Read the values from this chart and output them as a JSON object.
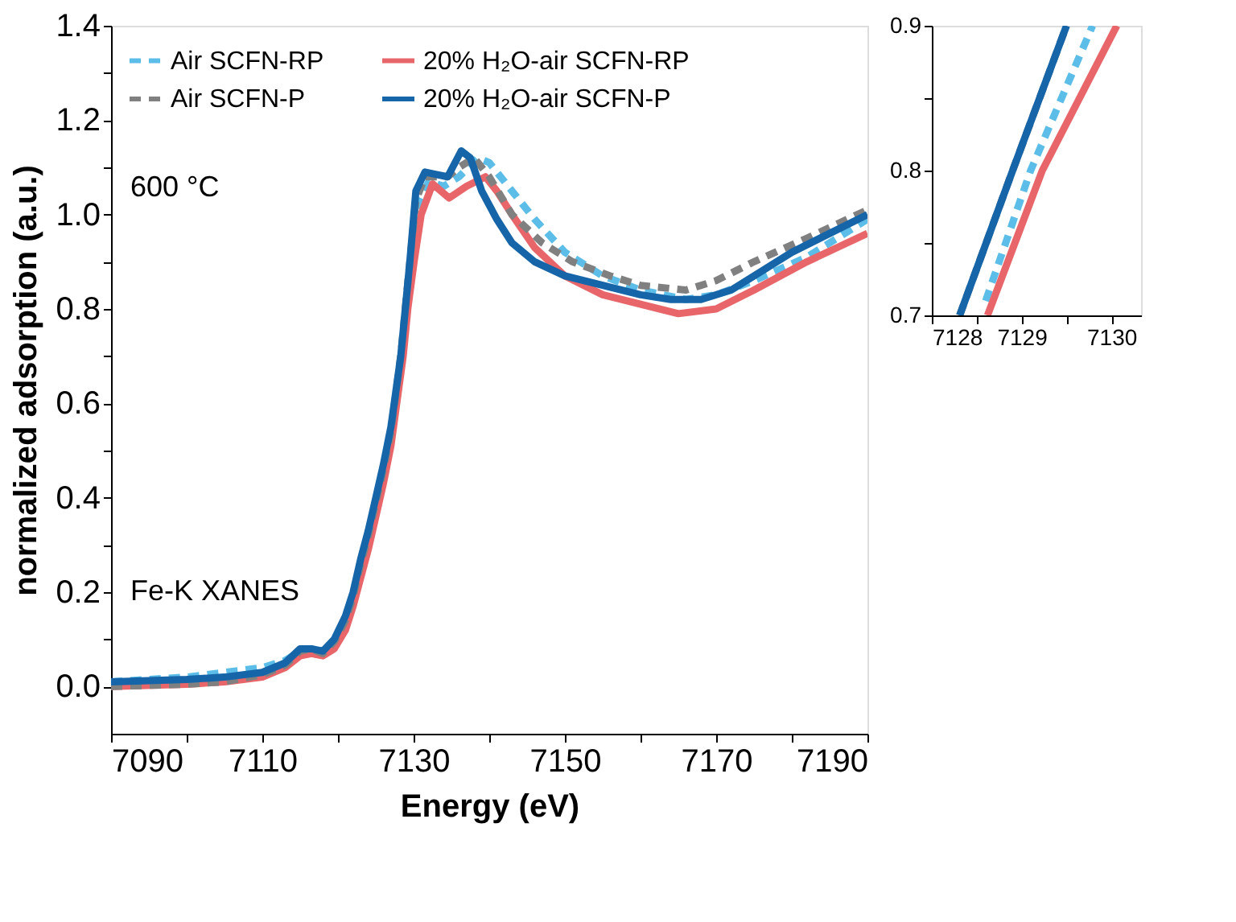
{
  "chart_data": [
    {
      "type": "line",
      "xlabel": "Energy (eV)",
      "ylabel": "normalized adsorption (a.u.)",
      "xlim": [
        7090,
        7190
      ],
      "ylim": [
        -0.1,
        1.4
      ],
      "xticks": [
        7090,
        {
          "value": 7100,
          "label": null
        },
        7110,
        {
          "value": 7120,
          "label": null
        },
        7130,
        {
          "value": 7140,
          "label": null
        },
        7150,
        {
          "value": 7160,
          "label": null
        },
        7170,
        {
          "value": 7180,
          "label": null
        },
        7190
      ],
      "yticks": [
        {
          "value": 0,
          "label": "0.0"
        },
        {
          "value": 0.1,
          "label": null
        },
        0.2,
        {
          "value": 0.3,
          "label": null
        },
        0.4,
        {
          "value": 0.5,
          "label": null
        },
        0.6,
        {
          "value": 0.7,
          "label": null
        },
        0.8,
        {
          "value": 0.9,
          "label": null
        },
        {
          "value": 1,
          "label": "1.0"
        },
        {
          "value": 1.1,
          "label": null
        },
        1.2,
        {
          "value": 1.3,
          "label": null
        },
        1.4
      ],
      "grid": false,
      "legend": "top left",
      "annotations": [
        "600 °C",
        "Fe-K XANES"
      ],
      "series": [
        {
          "name": "Air  SCFN-RP",
          "color": "#5bbde8",
          "line_style": "dashed",
          "x": [
            7090,
            7100,
            7105,
            7110,
            7113,
            7115,
            7116.5,
            7118,
            7119.5,
            7121,
            7122,
            7123,
            7124,
            7125,
            7126,
            7127,
            7128.55,
            7129.1,
            7129.79,
            7130.6,
            7132,
            7134,
            7136,
            7138.5,
            7140,
            7143,
            7146,
            7150,
            7155,
            7160,
            7166,
            7170,
            7175,
            7182,
            7190
          ],
          "values": [
            0.01,
            0.02,
            0.03,
            0.04,
            0.055,
            0.075,
            0.08,
            0.075,
            0.09,
            0.13,
            0.18,
            0.24,
            0.3,
            0.37,
            0.44,
            0.52,
            0.7,
            0.8,
            0.9,
            1.02,
            1.07,
            1.06,
            1.08,
            1.12,
            1.11,
            1.05,
            0.99,
            0.92,
            0.87,
            0.84,
            0.82,
            0.83,
            0.86,
            0.91,
            0.99
          ]
        },
        {
          "name": "20% H₂O-air SCFN-RP",
          "color": "#e8666a",
          "line_style": "solid",
          "x": [
            7090,
            7100,
            7105,
            7110,
            7113,
            7115,
            7116.5,
            7118,
            7119.5,
            7121,
            7122,
            7123,
            7124,
            7125,
            7126,
            7127,
            7128.62,
            7129.23,
            7130.06,
            7131,
            7132.5,
            7134.7,
            7137,
            7139.5,
            7141,
            7143,
            7146,
            7150,
            7155,
            7160,
            7165,
            7170,
            7175,
            7182,
            7190
          ],
          "values": [
            0,
            0.005,
            0.01,
            0.02,
            0.04,
            0.065,
            0.07,
            0.065,
            0.08,
            0.12,
            0.17,
            0.23,
            0.29,
            0.36,
            0.43,
            0.51,
            0.7,
            0.8,
            0.9,
            1.0,
            1.065,
            1.035,
            1.06,
            1.08,
            1.05,
            1.0,
            0.93,
            0.87,
            0.83,
            0.81,
            0.79,
            0.8,
            0.84,
            0.9,
            0.96
          ]
        },
        {
          "name": "Air  SCFN-P",
          "color": "#808080",
          "line_style": "dashed",
          "x": [
            7090,
            7100,
            7105,
            7110,
            7113,
            7115,
            7116.5,
            7118,
            7119.5,
            7121,
            7122,
            7123,
            7124,
            7125,
            7126,
            7127,
            7128.3,
            7128.9,
            7129.5,
            7130.3,
            7131.5,
            7133,
            7134.5,
            7136,
            7138,
            7140,
            7143,
            7147,
            7151,
            7156,
            7160,
            7166,
            7170,
            7175,
            7182,
            7190
          ],
          "values": [
            0,
            0.005,
            0.01,
            0.025,
            0.045,
            0.075,
            0.08,
            0.07,
            0.095,
            0.14,
            0.19,
            0.26,
            0.32,
            0.39,
            0.46,
            0.54,
            0.7,
            0.8,
            0.9,
            1.03,
            1.08,
            1.08,
            1.08,
            1.1,
            1.12,
            1.08,
            1.0,
            0.94,
            0.9,
            0.87,
            0.85,
            0.84,
            0.86,
            0.9,
            0.95,
            1.01
          ]
        },
        {
          "name": "20% H₂O-air SCFN-P",
          "color": "#1665a8",
          "line_style": "solid",
          "x": [
            7090,
            7100,
            7105,
            7110,
            7113,
            7115,
            7116.5,
            7118,
            7119.5,
            7121,
            7122,
            7123,
            7124,
            7125,
            7126,
            7127,
            7128.3,
            7128.9,
            7129.5,
            7130.3,
            7131.5,
            7133,
            7134.5,
            7136.3,
            7137.5,
            7139,
            7141,
            7143,
            7146,
            7150,
            7155,
            7160,
            7164,
            7168,
            7172,
            7176,
            7180,
            7185,
            7190
          ],
          "values": [
            0.01,
            0.015,
            0.02,
            0.03,
            0.05,
            0.08,
            0.08,
            0.075,
            0.1,
            0.15,
            0.2,
            0.27,
            0.33,
            0.4,
            0.47,
            0.55,
            0.7,
            0.8,
            0.9,
            1.05,
            1.09,
            1.085,
            1.08,
            1.135,
            1.12,
            1.05,
            0.99,
            0.94,
            0.9,
            0.87,
            0.85,
            0.83,
            0.82,
            0.82,
            0.84,
            0.88,
            0.92,
            0.96,
            1.0
          ]
        }
      ]
    },
    {
      "type": "line",
      "xlim": [
        7128,
        7130.33
      ],
      "ylim": [
        0.7,
        0.9
      ],
      "xticks": [
        7128,
        {
          "value": 7128.5,
          "label": null
        },
        7129,
        {
          "value": 7129.5,
          "label": null
        },
        7130
      ],
      "yticks": [
        0.7,
        {
          "value": 0.75,
          "label": null
        },
        0.8,
        {
          "value": 0.85,
          "label": null
        },
        0.9
      ],
      "grid": false,
      "legend": false,
      "series": [
        {
          "color": "#5bbde8",
          "line_style": "dashed",
          "x": [
            7128.6,
            7129.1,
            7129.79
          ],
          "values": [
            0.71,
            0.8,
            0.9
          ]
        },
        {
          "color": "#e8666a",
          "line_style": "solid",
          "x": [
            7128.62,
            7129.23,
            7130.06
          ],
          "values": [
            0.7,
            0.8,
            0.9
          ]
        },
        {
          "color": "#808080",
          "line_style": "dashed",
          "x": [
            7128.31,
            7128.9,
            7129.5
          ],
          "values": [
            0.7,
            0.8,
            0.9
          ]
        },
        {
          "color": "#1665a8",
          "line_style": "solid",
          "x": [
            7128.31,
            7128.9,
            7129.5
          ],
          "values": [
            0.7,
            0.8,
            0.9
          ]
        }
      ]
    }
  ]
}
